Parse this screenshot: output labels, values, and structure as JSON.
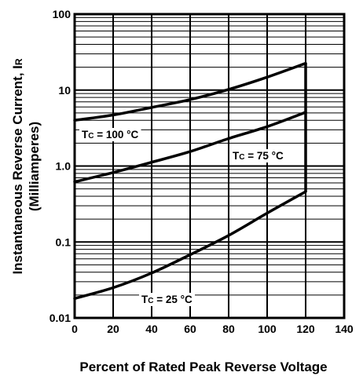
{
  "chart_data": {
    "type": "line",
    "title": "",
    "xlabel": "Percent of Rated Peak Reverse Voltage",
    "ylabel_line1": "Instantaneous Reverse Current, I",
    "ylabel_sub": "R",
    "ylabel_line2": "(Milliamperes)",
    "x_scale": "linear",
    "y_scale": "log",
    "xlim": [
      0,
      140
    ],
    "ylim": [
      0.01,
      100
    ],
    "x_ticks": [
      "0",
      "20",
      "40",
      "60",
      "80",
      "100",
      "120",
      "140"
    ],
    "y_ticks": [
      "0.01",
      "0.1",
      "1.0",
      "10",
      "100"
    ],
    "grid": "horizontal log minor + major",
    "series": [
      {
        "label_prefix": "T",
        "label_sub": "C",
        "label_suffix": " = 100 °C",
        "x": [
          0,
          20,
          40,
          60,
          80,
          100,
          120
        ],
        "y": [
          4.0,
          4.7,
          5.9,
          7.5,
          10.2,
          14.8,
          22.5
        ]
      },
      {
        "label_prefix": "T",
        "label_sub": "C",
        "label_suffix": " = 75 °C",
        "x": [
          0,
          20,
          40,
          60,
          80,
          100,
          120
        ],
        "y": [
          0.62,
          0.82,
          1.12,
          1.55,
          2.3,
          3.3,
          5.1
        ]
      },
      {
        "label_prefix": "T",
        "label_sub": "C",
        "label_suffix": " = 25 °C",
        "x": [
          0,
          20,
          40,
          60,
          80,
          100,
          120
        ],
        "y": [
          0.018,
          0.025,
          0.039,
          0.068,
          0.122,
          0.24,
          0.46
        ]
      }
    ],
    "vertical_limit_x": 120
  }
}
